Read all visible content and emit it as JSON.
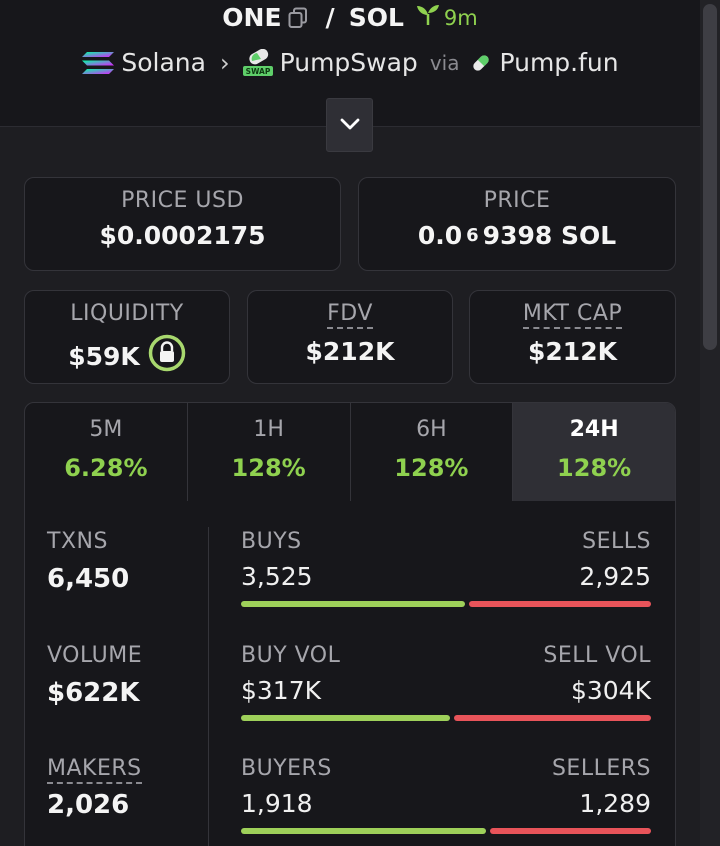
{
  "header": {
    "base_token": "ONE",
    "separator": "/",
    "quote_token": "SOL",
    "age": "9m",
    "chain": "Solana",
    "dex": "PumpSwap",
    "via_label": "via",
    "launchpad": "Pump.fun"
  },
  "cards": {
    "price_usd": {
      "label": "PRICE USD",
      "value": "$0.0002175"
    },
    "price": {
      "label": "PRICE",
      "value_prefix": "0.0",
      "value_sub": "6",
      "value_suffix": "9398 SOL"
    },
    "liquidity": {
      "label": "LIQUIDITY",
      "value": "$59K"
    },
    "fdv": {
      "label": "FDV",
      "value": "$212K"
    },
    "mkt_cap": {
      "label": "MKT CAP",
      "value": "$212K"
    }
  },
  "timeframes": [
    {
      "label": "5M",
      "change": "6.28%"
    },
    {
      "label": "1H",
      "change": "128%"
    },
    {
      "label": "6H",
      "change": "128%"
    },
    {
      "label": "24H",
      "change": "128%",
      "active": true
    }
  ],
  "stats": {
    "txns": {
      "label": "TXNS",
      "value": "6,450"
    },
    "volume": {
      "label": "VOLUME",
      "value": "$622K"
    },
    "makers": {
      "label": "MAKERS",
      "value": "2,026"
    },
    "buys": {
      "left_label": "BUYS",
      "left_value": "3,525",
      "right_label": "SELLS",
      "right_value": "2,925",
      "buy_ratio": 0.546
    },
    "buy_vol": {
      "left_label": "BUY VOL",
      "left_value": "$317K",
      "right_label": "SELL VOL",
      "right_value": "$304K",
      "buy_ratio": 0.51
    },
    "buyers": {
      "left_label": "BUYERS",
      "left_value": "1,918",
      "right_label": "SELLERS",
      "right_value": "1,289",
      "buy_ratio": 0.598
    }
  },
  "colors": {
    "positive": "#8fd14f",
    "buy_bar": "#9ed05a",
    "sell_bar": "#e8545a",
    "background": "#17171b"
  }
}
